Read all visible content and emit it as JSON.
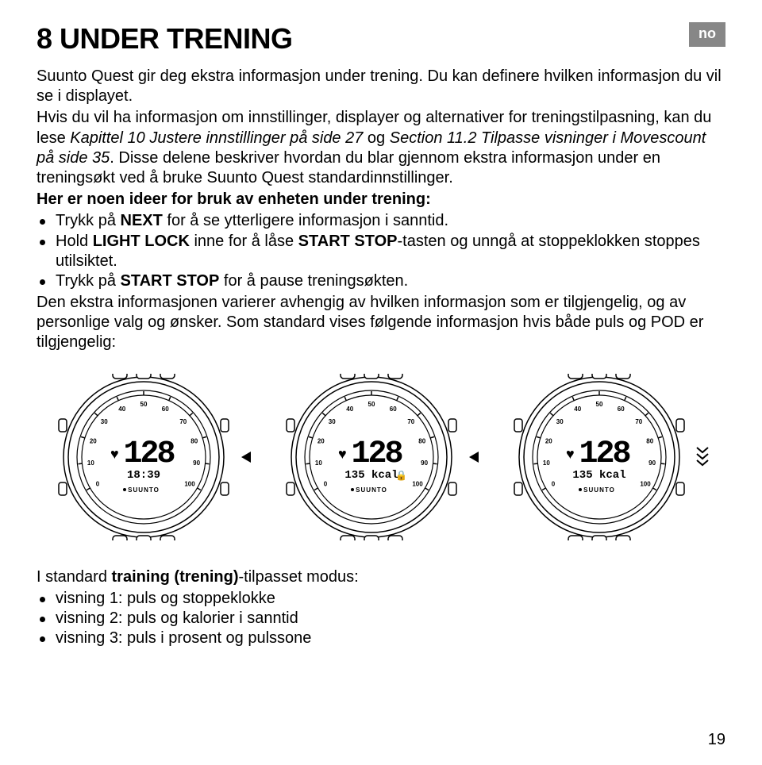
{
  "header": {
    "title": "8 UNDER TRENING",
    "lang_badge": "no"
  },
  "paragraphs": {
    "p1_a": "Suunto Quest gir deg ekstra informasjon under trening. Du kan definere hvilken informasjon du vil se i displayet.",
    "p1_b_pre": "Hvis du vil ha informasjon om innstillinger, displayer og alternativer for treningstilpasning, kan du lese ",
    "p1_b_link1": "Kapittel 10 Justere innstillinger på side 27",
    "p1_b_mid": " og ",
    "p1_b_link2": "Section 11.2 Tilpasse visninger i Movescount på side 35",
    "p1_b_post": ". Disse delene beskriver hvordan du blar gjennom ekstra informasjon under en treningsøkt ved å bruke Suunto Quest standardinnstillinger.",
    "p2_bold": "Her er noen ideer for bruk av enheten under trening:",
    "li1_a": "Trykk på ",
    "li1_b": "NEXT",
    "li1_c": " for å se ytterligere informasjon i sanntid.",
    "li2_a": "Hold ",
    "li2_b": "LIGHT LOCK",
    "li2_c": " inne for å låse ",
    "li2_d": "START STOP",
    "li2_e": "-tasten og unngå at stoppeklokken stoppes utilsiktet.",
    "li3_a": "Trykk på ",
    "li3_b": "START STOP",
    "li3_c": " for å pause treningsøkten.",
    "p3": "Den ekstra informasjonen varierer avhengig av hvilken informasjon som er tilgjengelig, og av personlige valg og ønsker. Som standard vises følgende informasjon hvis både puls og POD er tilgjengelig:",
    "p4_a": "I standard ",
    "p4_b": "training (trening)",
    "p4_c": "-tilpasset modus:",
    "li4": "visning 1: puls og stoppeklokke",
    "li5": "visning 2: puls og kalorier i sanntid",
    "li6": "visning 3: puls i prosent og pulssone"
  },
  "watches": [
    {
      "main": "128",
      "sub": "18:39",
      "side_icon": "triangle-left"
    },
    {
      "main": "128",
      "sub": "135 kcal",
      "side_icon": "triangle-left",
      "lock": true
    },
    {
      "main": "128",
      "sub": "135 kcal",
      "side_icon": "chevrons-down"
    }
  ],
  "watch_style": {
    "scale_numbers": [
      "0",
      "10",
      "20",
      "30",
      "40",
      "50",
      "60",
      "70",
      "80",
      "90",
      "100"
    ],
    "bezel_stroke": "#000000",
    "bg": "#ffffff",
    "brand": "SUUNTO"
  },
  "page_number": "19",
  "colors": {
    "text": "#000000",
    "badge_bg": "#878787",
    "badge_fg": "#ffffff",
    "lock_red": "#c53030"
  }
}
